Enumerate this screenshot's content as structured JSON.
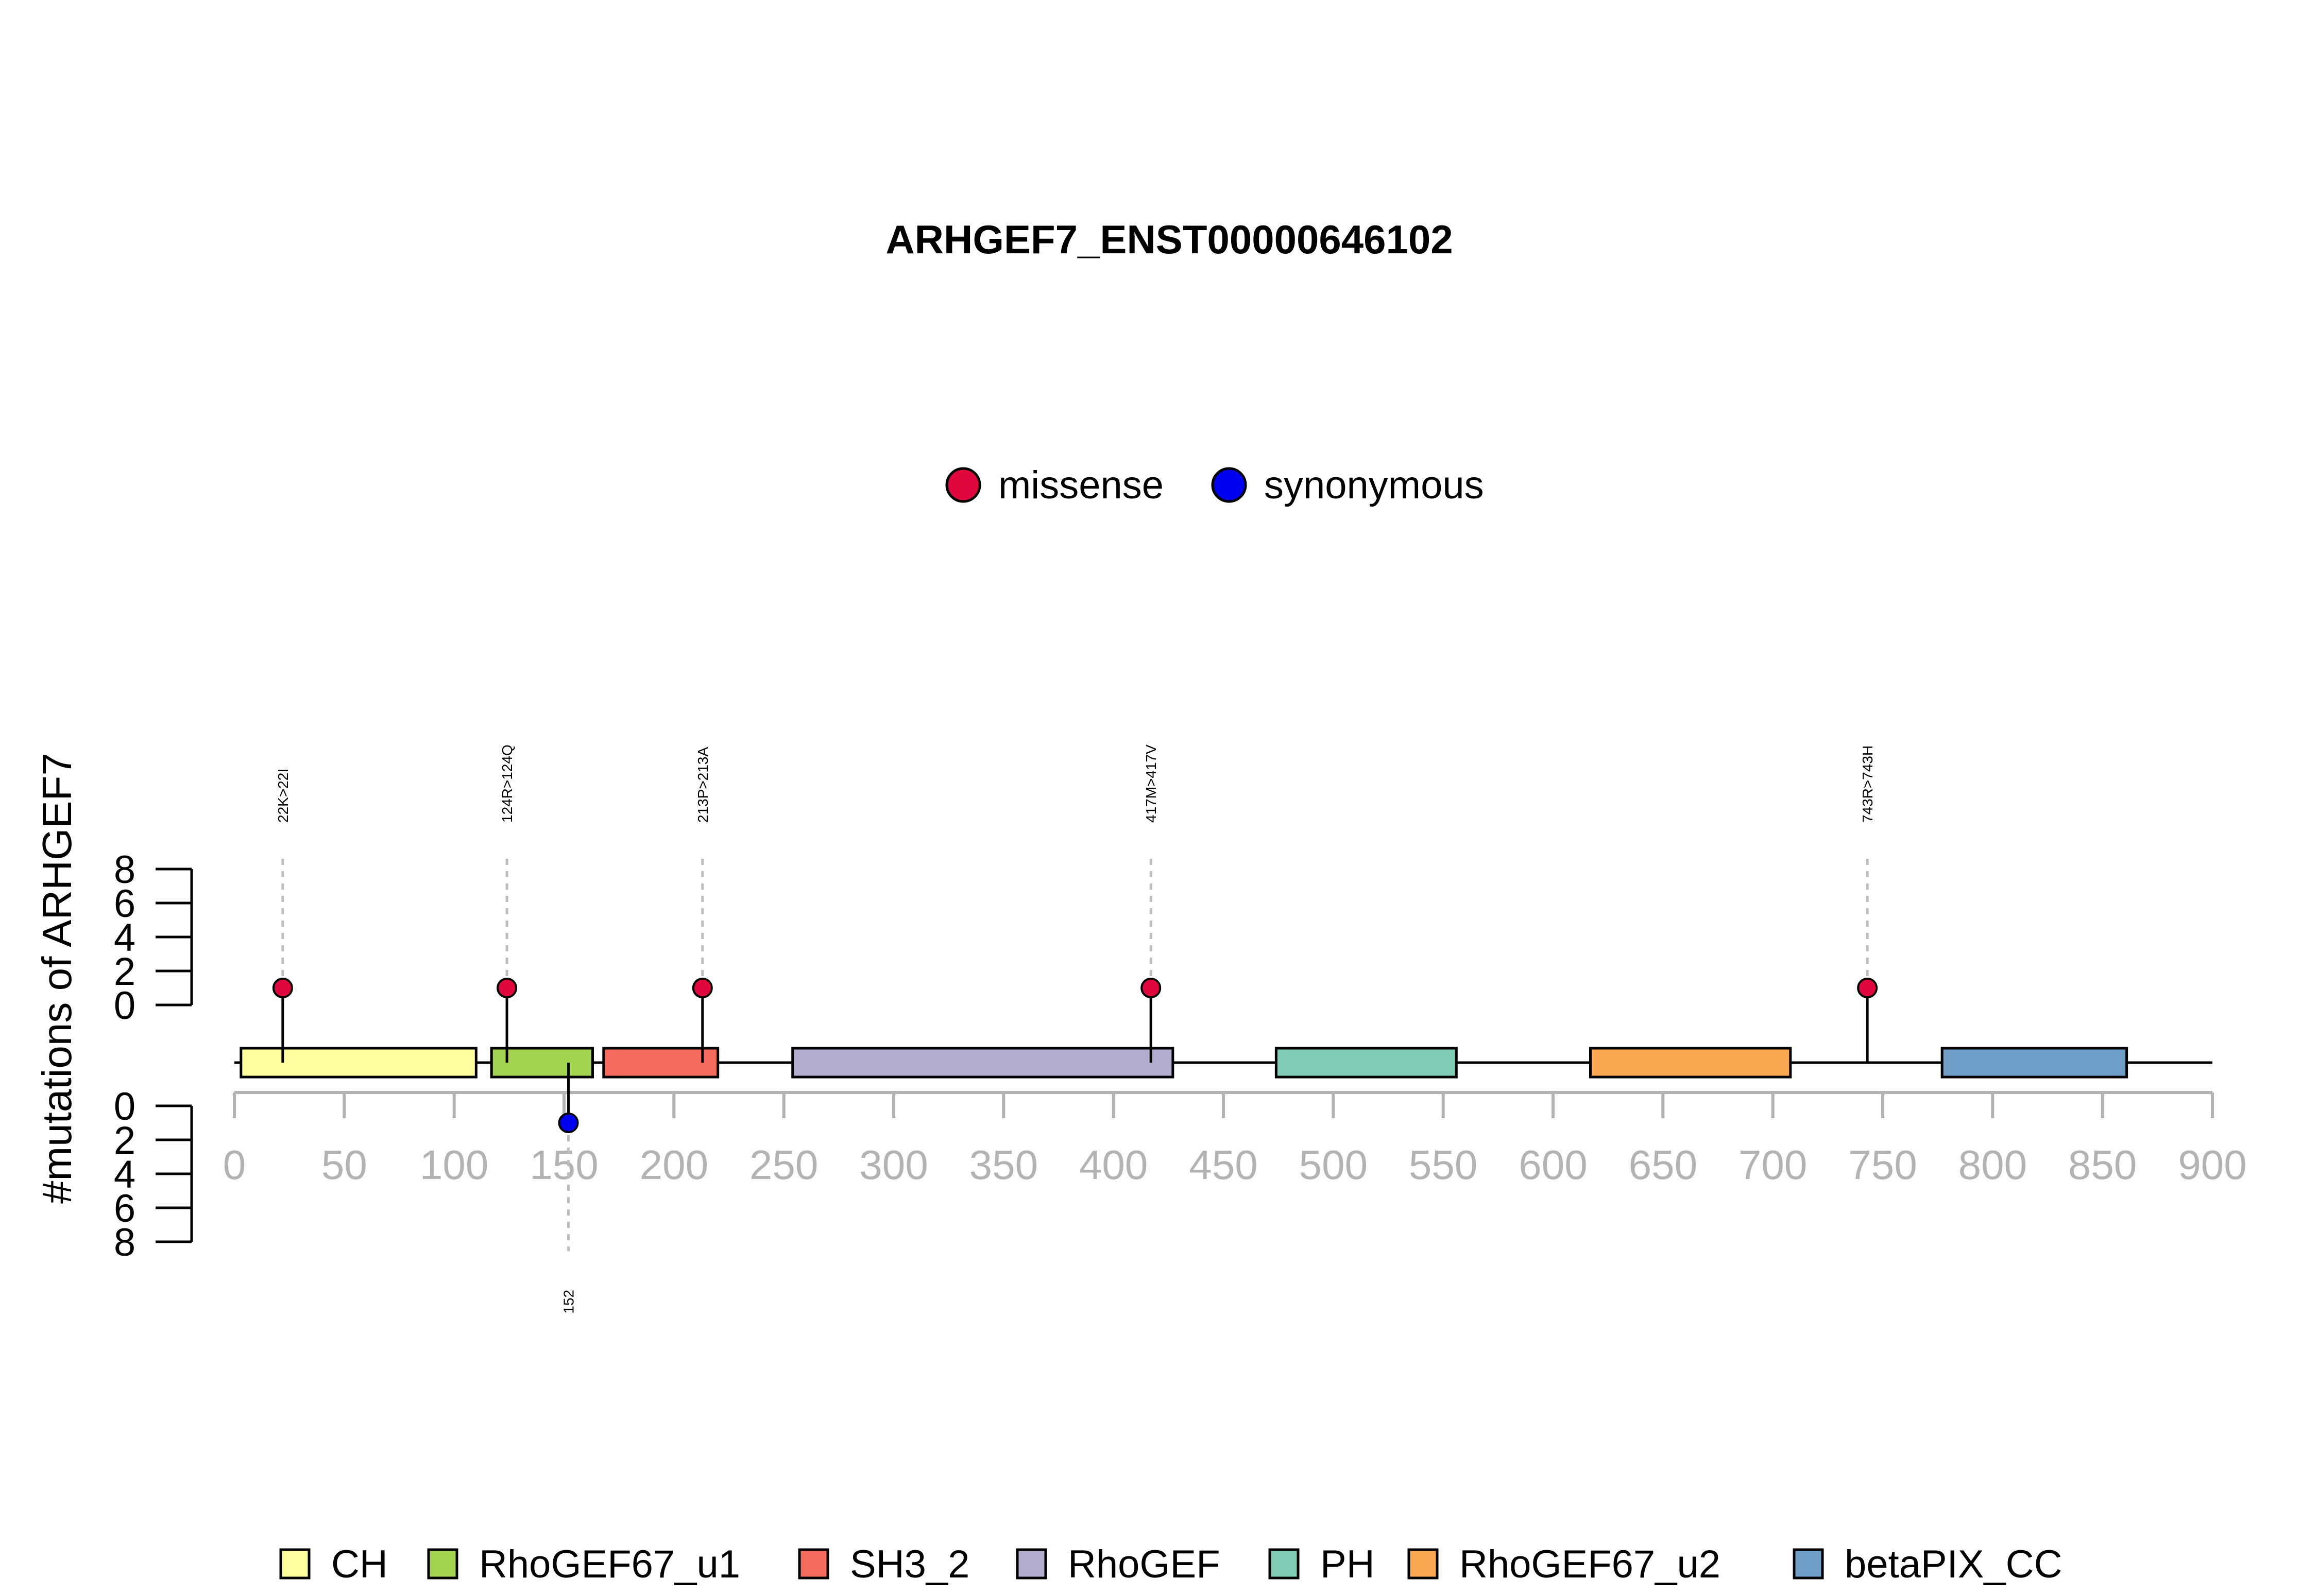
{
  "chart_data": {
    "type": "lollipop",
    "title": "ARHGEF7_ENST00000646102",
    "ylabel": "#mutations of ARHGEF7",
    "x_ticks": [
      "0",
      "50",
      "100",
      "150",
      "200",
      "250",
      "300",
      "350",
      "400",
      "450",
      "500",
      "550",
      "600",
      "650",
      "700",
      "750",
      "800",
      "850",
      "900"
    ],
    "xlim": [
      0,
      900
    ],
    "protein_length": 900,
    "y_top_ticks": [
      "8",
      "6",
      "4",
      "2",
      "0"
    ],
    "y_bottom_ticks": [
      "0",
      "2",
      "4",
      "6",
      "8"
    ],
    "ylim": [
      0,
      8
    ],
    "mutation_legend": [
      {
        "name": "missense",
        "color": "#e0063e"
      },
      {
        "name": "synonymous",
        "color": "#0000f0"
      }
    ],
    "domain_legend": [
      {
        "name": "CH",
        "color": "#ffffa0"
      },
      {
        "name": "RhoGEF67_u1",
        "color": "#a5d452"
      },
      {
        "name": "SH3_2",
        "color": "#f46a5c"
      },
      {
        "name": "RhoGEF",
        "color": "#b2adcf"
      },
      {
        "name": "PH",
        "color": "#7fcbb4"
      },
      {
        "name": "RhoGEF67_u2",
        "color": "#fba852"
      },
      {
        "name": "betaPIX_CC",
        "color": "#6f9ec8"
      }
    ],
    "domains": [
      {
        "name": "CH",
        "start": 3,
        "end": 110
      },
      {
        "name": "RhoGEF67_u1",
        "start": 117,
        "end": 163
      },
      {
        "name": "SH3_2",
        "start": 168,
        "end": 220
      },
      {
        "name": "RhoGEF",
        "start": 254,
        "end": 427
      },
      {
        "name": "PH",
        "start": 474,
        "end": 556
      },
      {
        "name": "RhoGEF67_u2",
        "start": 617,
        "end": 708
      },
      {
        "name": "betaPIX_CC",
        "start": 777,
        "end": 861
      }
    ],
    "mutations_top": [
      {
        "position": 22,
        "count": 1,
        "type": "missense",
        "label": "22K>22I"
      },
      {
        "position": 124,
        "count": 1,
        "type": "missense",
        "label": "124R>124Q"
      },
      {
        "position": 213,
        "count": 1,
        "type": "missense",
        "label": "213P>213A"
      },
      {
        "position": 417,
        "count": 1,
        "type": "missense",
        "label": "417M>417V"
      },
      {
        "position": 743,
        "count": 1,
        "type": "missense",
        "label": "743R>743H"
      }
    ],
    "mutations_bottom": [
      {
        "position": 152,
        "count": 1,
        "type": "synonymous",
        "label": "152"
      }
    ]
  }
}
